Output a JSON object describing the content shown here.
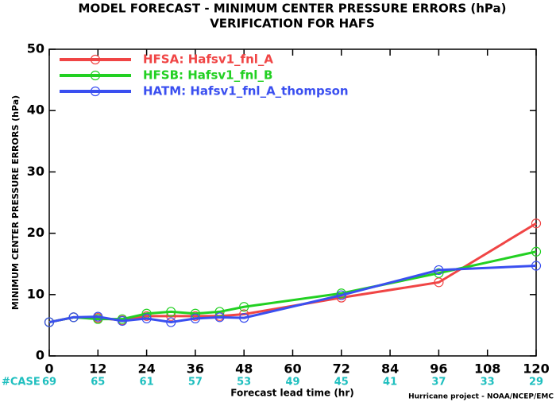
{
  "chart_data": {
    "type": "line",
    "title": "MODEL FORECAST - MINIMUM CENTER PRESSURE ERRORS (hPa)",
    "subtitle": "VERIFICATION FOR HAFS",
    "x_label": "Forecast lead time (hr)",
    "y_label": "MINIMUM CENTER PRESSURE ERRORS (hPa)",
    "x": [
      0,
      6,
      12,
      18,
      24,
      30,
      36,
      42,
      48,
      72,
      96,
      120
    ],
    "series": [
      {
        "name": "HFSA: Hafsv1_fnl_A",
        "color": "#f04545",
        "values": [
          5.5,
          6.3,
          6.2,
          5.8,
          6.5,
          6.5,
          6.5,
          6.5,
          6.8,
          9.5,
          12.0,
          21.6
        ]
      },
      {
        "name": "HFSB: Hafsv1_fnl_B",
        "color": "#22d022",
        "values": [
          5.5,
          6.3,
          6.0,
          6.0,
          6.9,
          7.2,
          6.9,
          7.2,
          8.0,
          10.2,
          13.5,
          17.0
        ]
      },
      {
        "name": "HATM: Hafsv1_fnl_A_thompson",
        "color": "#3a4ff0",
        "values": [
          5.5,
          6.3,
          6.4,
          5.7,
          6.1,
          5.5,
          6.1,
          6.3,
          6.2,
          9.9,
          14.0,
          14.7
        ]
      }
    ],
    "xlim": [
      0,
      120
    ],
    "xticks": [
      0,
      12,
      24,
      36,
      48,
      60,
      72,
      84,
      96,
      108,
      120
    ],
    "ylim": [
      0,
      50
    ],
    "yticks": [
      0,
      10,
      20,
      30,
      40,
      50
    ],
    "case_label": "#CASE",
    "case_counts": [
      "69",
      "65",
      "61",
      "57",
      "53",
      "49",
      "45",
      "41",
      "37",
      "33",
      "29"
    ],
    "case_color": "#1fbfbf",
    "footer": "Hurricane project - NOAA/NCEP/EMC"
  }
}
